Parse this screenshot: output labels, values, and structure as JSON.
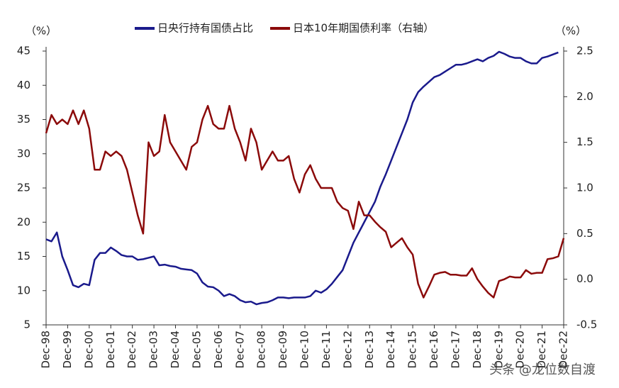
{
  "chart_data": {
    "type": "line",
    "unit_left": "（%）",
    "unit_right": "（%）",
    "watermark": "头条 @龙位数自渡",
    "categories": [
      "Dec-98",
      null,
      null,
      null,
      "Dec-99",
      null,
      null,
      null,
      "Dec-00",
      null,
      null,
      null,
      "Dec-01",
      null,
      null,
      null,
      "Dec-02",
      null,
      null,
      null,
      "Dec-03",
      null,
      null,
      null,
      "Dec-04",
      null,
      null,
      null,
      "Dec-05",
      null,
      null,
      null,
      "Dec-06",
      null,
      null,
      null,
      "Dec-07",
      null,
      null,
      null,
      "Dec-08",
      null,
      null,
      null,
      "Dec-09",
      null,
      null,
      null,
      "Dec-10",
      null,
      null,
      null,
      "Dec-11",
      null,
      null,
      null,
      "Dec-12",
      null,
      null,
      null,
      "Dec-13",
      null,
      null,
      null,
      "Dec-14",
      null,
      null,
      null,
      "Dec-15",
      null,
      null,
      null,
      "Dec-16",
      null,
      null,
      null,
      "Dec-17",
      null,
      null,
      null,
      "Dec-18",
      null,
      null,
      null,
      "Dec-19",
      null,
      null,
      null,
      "Dec-20",
      null,
      null,
      null,
      "Dec-21",
      null,
      null,
      null,
      "Dec-22"
    ],
    "series": [
      {
        "name": "日央行持有国债占比",
        "color": "#1a1a8c",
        "values": [
          17.5,
          17.2,
          18.5,
          15,
          13,
          10.8,
          10.5,
          11,
          10.8,
          14.5,
          15.5,
          15.5,
          16.3,
          15.8,
          15.2,
          15,
          15,
          14.5,
          14.6,
          14.8,
          15,
          13.7,
          13.8,
          13.6,
          13.5,
          13.2,
          13.1,
          13,
          12.5,
          11.2,
          10.6,
          10.5,
          10,
          9.2,
          9.5,
          9.2,
          8.6,
          8.3,
          8.4,
          8,
          8.2,
          8.3,
          8.6,
          9,
          9,
          8.9,
          9,
          9,
          9,
          9.2,
          10,
          9.7,
          10.2,
          11,
          12,
          13,
          15,
          17,
          18.5,
          20,
          21.5,
          23,
          25.2,
          27,
          29,
          31,
          33,
          35,
          37.5,
          39,
          39.8,
          40.5,
          41.2,
          41.5,
          42,
          42.5,
          43,
          43,
          43.2,
          43.5,
          43.8,
          43.5,
          44,
          44.3,
          44.9,
          44.6,
          44.2,
          44,
          44,
          43.5,
          43.2,
          43.2,
          44,
          44.2,
          44.5,
          44.8,
          null
        ]
      },
      {
        "name": "日本10年期国债利率（右轴）",
        "color": "#8b0a0a",
        "axis": "y2",
        "values": [
          1.6,
          1.8,
          1.7,
          1.75,
          1.7,
          1.85,
          1.7,
          1.85,
          1.65,
          1.2,
          1.2,
          1.4,
          1.35,
          1.4,
          1.35,
          1.2,
          0.95,
          0.7,
          0.5,
          1.5,
          1.35,
          1.4,
          1.8,
          1.5,
          1.4,
          1.3,
          1.2,
          1.45,
          1.5,
          1.75,
          1.9,
          1.7,
          1.65,
          1.65,
          1.9,
          1.65,
          1.5,
          1.3,
          1.65,
          1.5,
          1.2,
          1.3,
          1.4,
          1.3,
          1.3,
          1.35,
          1.1,
          0.95,
          1.15,
          1.25,
          1.1,
          1.0,
          1.0,
          1.0,
          0.85,
          0.78,
          0.75,
          0.55,
          0.85,
          0.7,
          0.7,
          0.63,
          0.57,
          0.52,
          0.35,
          0.4,
          0.45,
          0.35,
          0.27,
          -0.05,
          -0.2,
          -0.08,
          0.05,
          0.07,
          0.08,
          0.05,
          0.05,
          0.04,
          0.04,
          0.12,
          0.0,
          -0.08,
          -0.15,
          -0.2,
          -0.02,
          0.0,
          0.03,
          0.02,
          0.02,
          0.1,
          0.06,
          0.07,
          0.07,
          0.22,
          0.23,
          0.25,
          0.45
        ]
      }
    ],
    "ylim": [
      5,
      45
    ],
    "yticks": [
      5,
      10,
      15,
      20,
      25,
      30,
      35,
      40,
      45
    ],
    "y2lim": [
      -0.5,
      2.5
    ],
    "y2ticks": [
      -0.5,
      {
        "value": 0,
        "label": "0.0"
      },
      0.5,
      {
        "value": 1,
        "label": "1.0"
      },
      1.5,
      {
        "value": 2,
        "label": "2.0"
      },
      2.5
    ]
  }
}
